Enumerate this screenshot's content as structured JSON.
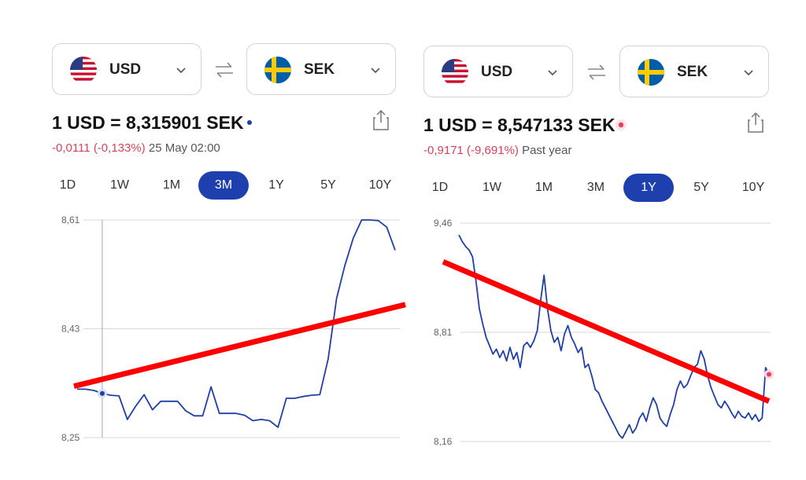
{
  "colors": {
    "accent": "#1e3fae",
    "series": "#1f3fa5",
    "negative": "#d9435a",
    "trend_overlay": "#ff0000"
  },
  "panels": [
    {
      "from_currency": {
        "code": "USD",
        "flag": "us-flag-icon"
      },
      "to_currency": {
        "code": "SEK",
        "flag": "sweden-flag-icon"
      },
      "rate_text": "1 USD = 8,315901 SEK",
      "change_text": "-0,0111 (-0,133%)",
      "period_text": "25 May 02:00",
      "tabs": [
        "1D",
        "1W",
        "1M",
        "3M",
        "1Y",
        "5Y",
        "10Y"
      ],
      "active_tab": "3M"
    },
    {
      "from_currency": {
        "code": "USD",
        "flag": "us-flag-icon"
      },
      "to_currency": {
        "code": "SEK",
        "flag": "sweden-flag-icon"
      },
      "rate_text": "1 USD = 8,547133 SEK",
      "change_text": "-0,9171 (-9,691%)",
      "period_text": "Past year",
      "tabs": [
        "1D",
        "1W",
        "1M",
        "3M",
        "1Y",
        "5Y",
        "10Y"
      ],
      "active_tab": "1Y"
    }
  ],
  "chart_data": [
    {
      "type": "line",
      "yticks": [
        "8,61",
        "8,43",
        "8,25"
      ],
      "ylim": [
        8.25,
        8.61
      ],
      "y_tick_values": [
        8.61,
        8.43,
        8.25
      ],
      "grid": true,
      "crosshair_index": 3,
      "series": [
        {
          "values": [
            8.33,
            8.33,
            8.328,
            8.323,
            8.32,
            8.319,
            8.28,
            8.302,
            8.321,
            8.296,
            8.31,
            8.31,
            8.31,
            8.294,
            8.286,
            8.286,
            8.334,
            8.29,
            8.29,
            8.29,
            8.287,
            8.278,
            8.28,
            8.278,
            8.267,
            8.315,
            8.315,
            8.318,
            8.32,
            8.321,
            8.38,
            8.48,
            8.535,
            8.58,
            8.61,
            8.61,
            8.609,
            8.598,
            8.56
          ]
        }
      ],
      "trend_overlay": {
        "start": 8.335,
        "end": 8.47
      }
    },
    {
      "type": "line",
      "yticks": [
        "9,46",
        "8,81",
        "8,16"
      ],
      "ylim": [
        8.16,
        9.46
      ],
      "y_tick_values": [
        9.46,
        8.81,
        8.16
      ],
      "grid": true,
      "series": [
        {
          "values": [
            9.39,
            9.35,
            9.32,
            9.3,
            9.26,
            9.12,
            8.95,
            8.86,
            8.78,
            8.73,
            8.68,
            8.71,
            8.66,
            8.7,
            8.64,
            8.72,
            8.65,
            8.69,
            8.6,
            8.73,
            8.75,
            8.72,
            8.76,
            8.82,
            9.0,
            9.15,
            8.95,
            8.82,
            8.75,
            8.78,
            8.7,
            8.8,
            8.85,
            8.78,
            8.74,
            8.69,
            8.72,
            8.6,
            8.62,
            8.55,
            8.47,
            8.45,
            8.4,
            8.36,
            8.32,
            8.28,
            8.24,
            8.2,
            8.18,
            8.22,
            8.26,
            8.21,
            8.24,
            8.3,
            8.33,
            8.28,
            8.36,
            8.42,
            8.38,
            8.3,
            8.27,
            8.25,
            8.32,
            8.38,
            8.47,
            8.52,
            8.48,
            8.5,
            8.55,
            8.6,
            8.62,
            8.7,
            8.65,
            8.55,
            8.48,
            8.43,
            8.38,
            8.36,
            8.4,
            8.37,
            8.33,
            8.3,
            8.34,
            8.31,
            8.3,
            8.33,
            8.29,
            8.32,
            8.28,
            8.3,
            8.6,
            8.56
          ]
        }
      ],
      "trend_overlay": {
        "start": 9.23,
        "end": 8.4
      }
    }
  ]
}
